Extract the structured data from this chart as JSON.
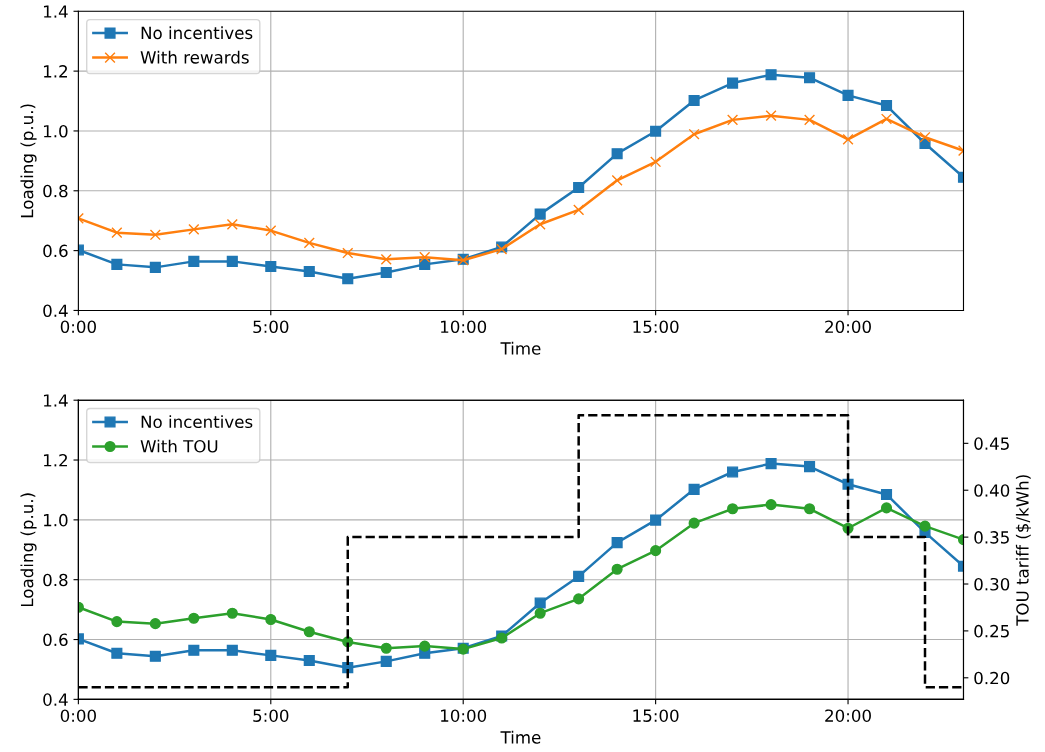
{
  "chart_data": [
    {
      "type": "line",
      "xlabel": "Time",
      "ylabel": "Loading (p.u.)",
      "x": [
        0,
        1,
        2,
        3,
        4,
        5,
        6,
        7,
        8,
        9,
        10,
        11,
        12,
        13,
        14,
        15,
        16,
        17,
        18,
        19,
        20,
        21,
        22,
        23
      ],
      "xlim": [
        0,
        23
      ],
      "xticks": [
        {
          "value": 0,
          "label": "0:00"
        },
        {
          "value": 5,
          "label": "5:00"
        },
        {
          "value": 10,
          "label": "10:00"
        },
        {
          "value": 15,
          "label": "15:00"
        },
        {
          "value": 20,
          "label": "20:00"
        }
      ],
      "ylim": [
        0.4,
        1.4
      ],
      "yticks": [
        0.4,
        0.6,
        0.8,
        {
          "value": 1.0,
          "label": "1.0"
        },
        1.2,
        1.4
      ],
      "grid": true,
      "legend": "top left",
      "series": [
        {
          "name": "No incentives",
          "color": "#1f77b4",
          "marker": "square",
          "values": [
            0.602,
            0.554,
            0.544,
            0.564,
            0.564,
            0.547,
            0.53,
            0.506,
            0.527,
            0.554,
            0.571,
            0.612,
            0.722,
            0.811,
            0.924,
            0.999,
            1.102,
            1.16,
            1.188,
            1.178,
            1.119,
            1.085,
            0.958,
            0.845
          ]
        },
        {
          "name": "With rewards",
          "color": "#ff7f0e",
          "marker": "cross",
          "values": [
            0.708,
            0.66,
            0.653,
            0.671,
            0.688,
            0.667,
            0.626,
            0.592,
            0.571,
            0.578,
            0.568,
            0.605,
            0.688,
            0.736,
            0.835,
            0.897,
            0.989,
            1.037,
            1.051,
            1.037,
            0.972,
            1.04,
            0.979,
            0.934
          ]
        }
      ]
    },
    {
      "type": "line",
      "xlabel": "Time",
      "ylabel": "Loading (p.u.)",
      "y2label": "TOU tariff ($/kWh)",
      "x": [
        0,
        1,
        2,
        3,
        4,
        5,
        6,
        7,
        8,
        9,
        10,
        11,
        12,
        13,
        14,
        15,
        16,
        17,
        18,
        19,
        20,
        21,
        22,
        23
      ],
      "xlim": [
        0,
        23
      ],
      "xticks": [
        {
          "value": 0,
          "label": "0:00"
        },
        {
          "value": 5,
          "label": "5:00"
        },
        {
          "value": 10,
          "label": "10:00"
        },
        {
          "value": 15,
          "label": "15:00"
        },
        {
          "value": 20,
          "label": "20:00"
        }
      ],
      "ylim": [
        0.4,
        1.4
      ],
      "yticks": [
        0.4,
        0.6,
        0.8,
        {
          "value": 1.0,
          "label": "1.0"
        },
        1.2,
        1.4
      ],
      "y2lim": [
        0.177,
        0.496
      ],
      "y2ticks": [
        {
          "value": 0.2,
          "label": "0.20"
        },
        0.25,
        {
          "value": 0.3,
          "label": "0.30"
        },
        0.35,
        {
          "value": 0.4,
          "label": "0.40"
        },
        0.45
      ],
      "grid": true,
      "legend": "top left",
      "series": [
        {
          "name": "No incentives",
          "color": "#1f77b4",
          "marker": "square",
          "values": [
            0.602,
            0.554,
            0.544,
            0.564,
            0.564,
            0.547,
            0.53,
            0.506,
            0.527,
            0.554,
            0.571,
            0.612,
            0.722,
            0.811,
            0.924,
            0.999,
            1.102,
            1.16,
            1.188,
            1.178,
            1.119,
            1.085,
            0.958,
            0.845
          ]
        },
        {
          "name": "With TOU",
          "color": "#2ca02c",
          "marker": "circle",
          "values": [
            0.708,
            0.66,
            0.653,
            0.671,
            0.688,
            0.667,
            0.626,
            0.592,
            0.571,
            0.578,
            0.568,
            0.605,
            0.688,
            0.736,
            0.835,
            0.897,
            0.989,
            1.037,
            1.051,
            1.037,
            0.972,
            1.04,
            0.979,
            0.934
          ]
        },
        {
          "type": "step",
          "axis": "y2",
          "color": "#000000",
          "line_style": "dashed",
          "marker": "none",
          "x": [
            0,
            7,
            13,
            20,
            22,
            23
          ],
          "values": [
            0.19,
            0.35,
            0.48,
            0.35,
            0.19,
            0.19
          ]
        }
      ]
    }
  ]
}
